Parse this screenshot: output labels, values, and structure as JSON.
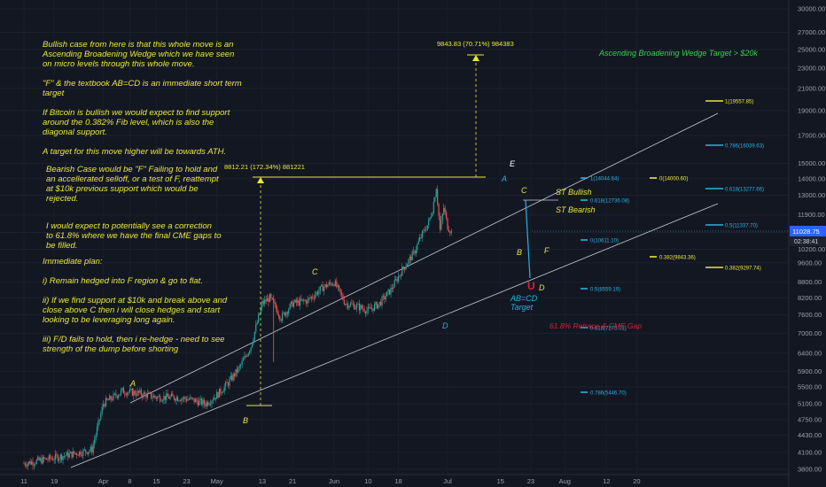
{
  "notes": {
    "bullish": "Bullish case from here is that this whole move is an\nAscending Broadening Wedge which we have seen\non micro levels through this whole move.\n\n\"F\" & the textbook AB=CD is an immediate short term\ntarget\n\nIf Bitcoin is bullish we would expect to find support\naround the 0.382% Fib level, which is also the\ndiagonal support.\n\nA target for this move higher will be towards ATH.",
    "bearish": "Bearish Case would be \"F\" Failing to hold and\nan accellerated selloff, or a test of F, reattempt\nat $10k previous support which would be\nrejected.",
    "correction": "I would expect to potentially see a correction\nto 61.8% where we have the final CME gaps to\nbe filled.",
    "plan": "Immediate plan:\n\ni) Remain hedged into F region & go to flat.\n\nii) If we find support at $10k and break above and\nclose above C then i will close hedges and start\nlooking to be leveraging long again.\n\niii) F/D fails to hold, then  i re-hedge - need to see\nstrength of the dump before shorting"
  },
  "chart_data": {
    "type": "candlestick",
    "price_scale": "log",
    "ylim": [
      3800,
      32000
    ],
    "y_ticks": [
      "30000.00",
      "27000.00",
      "25000.00",
      "23000.00",
      "21000.00",
      "19000.00",
      "17000.00",
      "15000.00",
      "14000.00",
      "13000.00",
      "11900.00",
      "11000.00",
      "10200.00",
      "9600.00",
      "8800.00",
      "8200.00",
      "7600.00",
      "7000.00",
      "6400.00",
      "5900.00",
      "5500.00",
      "5100.00",
      "4750.00",
      "4430.00",
      "4100.00",
      "3800.00"
    ],
    "x_ticks": [
      "11",
      "19",
      "Apr",
      "8",
      "15",
      "23",
      "May",
      "13",
      "21",
      "Jun",
      "10",
      "18",
      "Jul",
      "15",
      "23",
      "Aug",
      "12",
      "20"
    ],
    "current_price": "11028.75",
    "current_time": "02:38:41",
    "title_annotation": "Ascending Broadening Wedge Target > $20k",
    "measures": [
      {
        "label": "9843.83 (70.71%) 984383"
      },
      {
        "label": "8812.21 (172.34%) 881221"
      }
    ],
    "pattern_points": [
      "A",
      "B",
      "C",
      "D",
      "E",
      "A",
      "B",
      "C",
      "D",
      "F",
      "A",
      "B"
    ],
    "target_labels": [
      "AB=CD",
      "Target"
    ],
    "st_bullish": "ST Bullish",
    "st_bearish": "ST Bearish",
    "cme_gap_label": "61.8% Retrace & CME Gap",
    "fib_sets": [
      {
        "color": "#27b3e0",
        "levels": [
          {
            "label": "1(14044.64)",
            "price": 14044.64
          },
          {
            "label": "0.618(12736.08)",
            "price": 12736.08
          },
          {
            "label": "0(10611.10)",
            "price": 10611.1
          },
          {
            "label": "0.5(8559.19)",
            "price": 8559.19
          },
          {
            "label": "0.618(7275.01)",
            "price": 7275.01
          },
          {
            "label": "0.786(5446.70)",
            "price": 5446.7
          }
        ]
      },
      {
        "color": "#e8e83a",
        "levels": [
          {
            "label": "0(14000.60)",
            "price": 14000.6
          },
          {
            "label": "0.382(9843.36)",
            "price": 9843.36
          }
        ]
      },
      {
        "color": "#e8e83a",
        "levels": [
          {
            "label": "1(19557.85)",
            "price": 19557.85
          },
          {
            "label": "0.382(9297.74)",
            "price": 9297.74
          }
        ]
      },
      {
        "color": "#27b3e0",
        "levels": [
          {
            "label": "0.786(16039.63)",
            "price": 16039.63
          },
          {
            "label": "0.618(13277.66)",
            "price": 13277.66
          },
          {
            "label": "0.5(11337.70)",
            "price": 11337.7
          }
        ]
      }
    ],
    "price_path": [
      {
        "date": "2020-03-11",
        "close": 3900
      },
      {
        "date": "2020-03-19",
        "close": 4000
      },
      {
        "date": "2020-03-29",
        "close": 4150
      },
      {
        "date": "2020-04-01",
        "close": 5100
      },
      {
        "date": "2020-04-06",
        "close": 5400
      },
      {
        "date": "2020-04-10",
        "close": 5350
      },
      {
        "date": "2020-04-15",
        "close": 5250
      },
      {
        "date": "2020-04-20",
        "close": 5250
      },
      {
        "date": "2020-04-24",
        "close": 5200
      },
      {
        "date": "2020-04-28",
        "close": 5100
      },
      {
        "date": "2020-05-01",
        "close": 5300
      },
      {
        "date": "2020-05-04",
        "close": 5600
      },
      {
        "date": "2020-05-07",
        "close": 6000
      },
      {
        "date": "2020-05-10",
        "close": 6600
      },
      {
        "date": "2020-05-13",
        "close": 8000
      },
      {
        "date": "2020-05-15",
        "close": 8200
      },
      {
        "date": "2020-05-18",
        "close": 7500
      },
      {
        "date": "2020-05-21",
        "close": 8000
      },
      {
        "date": "2020-05-25",
        "close": 8100
      },
      {
        "date": "2020-05-29",
        "close": 8600
      },
      {
        "date": "2020-06-01",
        "close": 8800
      },
      {
        "date": "2020-06-04",
        "close": 8000
      },
      {
        "date": "2020-06-07",
        "close": 7900
      },
      {
        "date": "2020-06-10",
        "close": 7750
      },
      {
        "date": "2020-06-13",
        "close": 8000
      },
      {
        "date": "2020-06-16",
        "close": 8500
      },
      {
        "date": "2020-06-19",
        "close": 9300
      },
      {
        "date": "2020-06-22",
        "close": 10000
      },
      {
        "date": "2020-06-24",
        "close": 10800
      },
      {
        "date": "2020-06-26",
        "close": 11500
      },
      {
        "date": "2020-06-27",
        "close": 12200
      },
      {
        "date": "2020-06-28",
        "close": 13500
      },
      {
        "date": "2020-06-29",
        "close": 11100
      },
      {
        "date": "2020-06-30",
        "close": 12300
      },
      {
        "date": "2020-07-01",
        "close": 11300
      },
      {
        "date": "2020-07-02",
        "close": 11028
      }
    ]
  }
}
